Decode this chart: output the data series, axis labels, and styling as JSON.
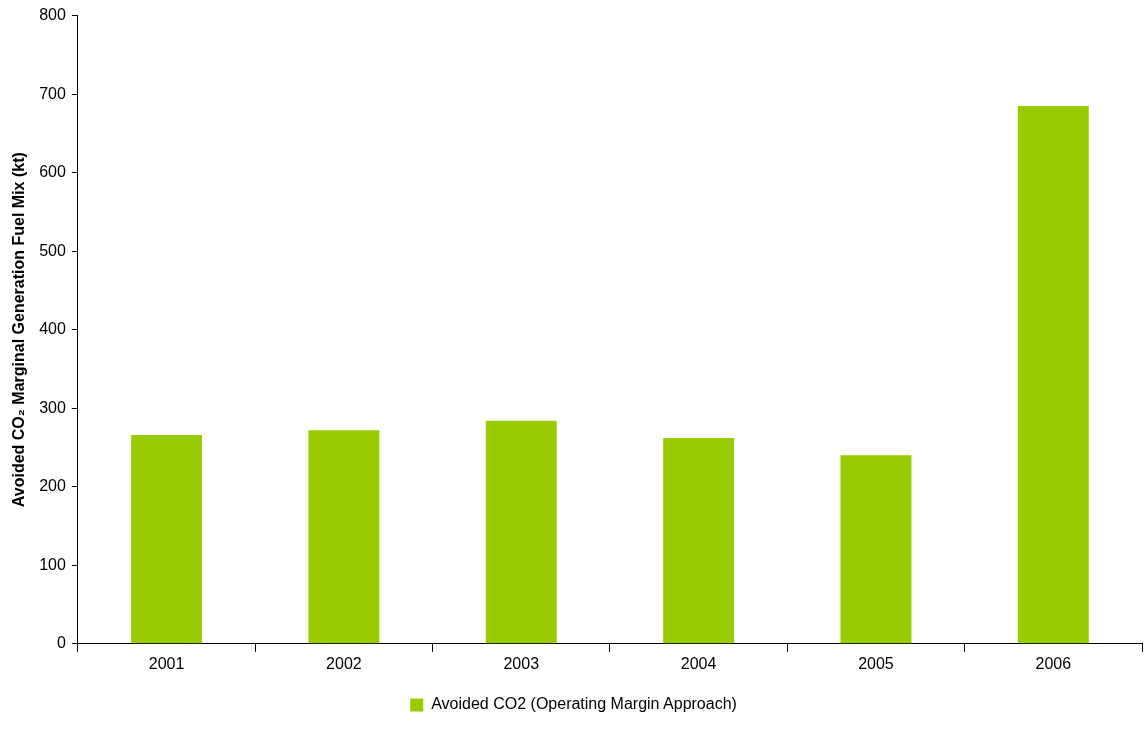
{
  "chart_data": {
    "type": "bar",
    "ylabel": "Avoided CO₂ Marginal Generation Fuel Mix (kt)",
    "categories": [
      "2001",
      "2002",
      "2003",
      "2004",
      "2005",
      "2006"
    ],
    "series": [
      {
        "name": "Avoided CO2 (Operating Margin Approach)",
        "color": "#99cc00",
        "values": [
          266,
          272,
          284,
          262,
          240,
          685
        ]
      }
    ],
    "ylim": [
      0,
      800
    ],
    "yticks": [
      0,
      100,
      200,
      300,
      400,
      500,
      600,
      700,
      800
    ],
    "grid": false,
    "legend": "bottom"
  }
}
